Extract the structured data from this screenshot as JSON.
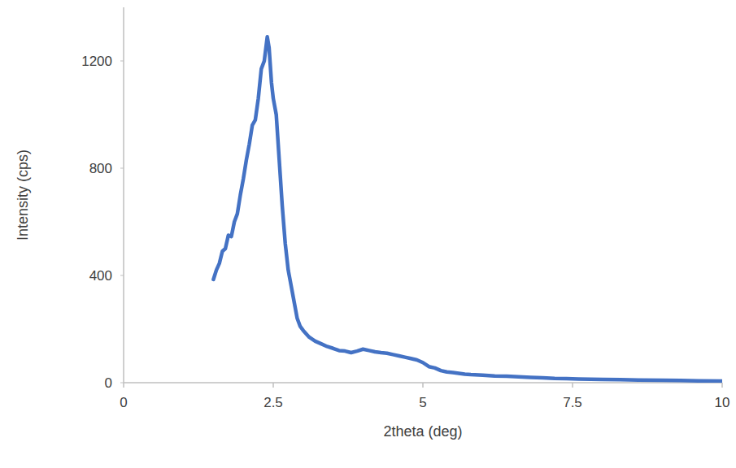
{
  "chart_data": {
    "type": "line",
    "x_label": "2theta (deg)",
    "y_label": "Intensity (cps)",
    "x": [
      1.5,
      1.55,
      1.6,
      1.65,
      1.7,
      1.75,
      1.8,
      1.85,
      1.9,
      1.95,
      2.0,
      2.05,
      2.1,
      2.15,
      2.2,
      2.25,
      2.3,
      2.35,
      2.4,
      2.43,
      2.47,
      2.5,
      2.55,
      2.6,
      2.65,
      2.7,
      2.75,
      2.8,
      2.85,
      2.9,
      2.95,
      3.0,
      3.1,
      3.2,
      3.3,
      3.4,
      3.5,
      3.6,
      3.7,
      3.8,
      3.9,
      4.0,
      4.1,
      4.2,
      4.3,
      4.4,
      4.5,
      4.6,
      4.7,
      4.8,
      4.9,
      5.0,
      5.1,
      5.2,
      5.3,
      5.4,
      5.5,
      5.6,
      5.7,
      5.8,
      6.0,
      6.2,
      6.4,
      6.6,
      6.8,
      7.0,
      7.2,
      7.4,
      7.6,
      7.8,
      8.0,
      8.3,
      8.6,
      9.0,
      9.3,
      9.6,
      10.0
    ],
    "values": [
      385,
      420,
      445,
      490,
      500,
      550,
      545,
      600,
      630,
      700,
      760,
      830,
      890,
      960,
      980,
      1060,
      1170,
      1200,
      1290,
      1250,
      1120,
      1060,
      1000,
      830,
      660,
      520,
      420,
      360,
      300,
      240,
      210,
      195,
      170,
      155,
      145,
      135,
      128,
      120,
      118,
      112,
      118,
      125,
      120,
      115,
      112,
      110,
      105,
      100,
      95,
      90,
      85,
      75,
      60,
      55,
      45,
      40,
      38,
      35,
      32,
      30,
      28,
      25,
      24,
      22,
      20,
      18,
      16,
      15,
      14,
      13,
      12,
      11,
      10,
      9,
      8,
      7,
      6
    ],
    "color": "#4472c4",
    "xlim": [
      0,
      10
    ],
    "xticks": [
      0,
      2.5,
      5,
      7.5,
      10
    ],
    "ylim": [
      0,
      1400
    ],
    "yticks": [
      0,
      400,
      800,
      1200
    ],
    "grid": false
  }
}
